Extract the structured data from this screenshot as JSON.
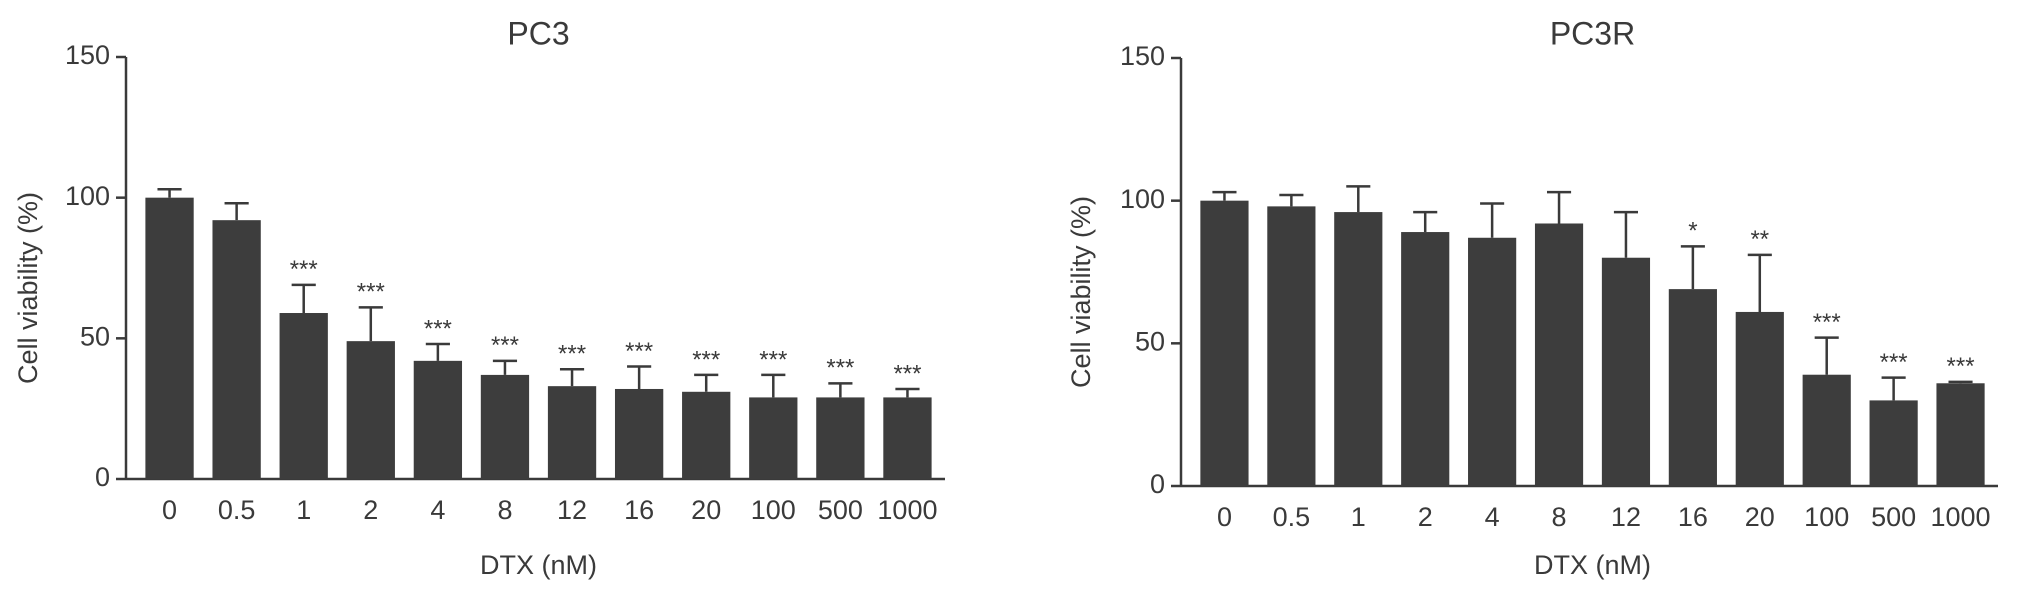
{
  "chart_data": [
    {
      "type": "bar",
      "title": "PC3",
      "x_label": "DTX (nM)",
      "y_label": "Cell viability (%)",
      "categories": [
        "0",
        "0.5",
        "1",
        "2",
        "4",
        "8",
        "12",
        "16",
        "20",
        "100",
        "500",
        "1000"
      ],
      "values": [
        100,
        92,
        59,
        49,
        42,
        37,
        33,
        32,
        31,
        29,
        29,
        29
      ],
      "errors": [
        3,
        6,
        10,
        12,
        6,
        5,
        6,
        8,
        6,
        8,
        5,
        3
      ],
      "annotations": [
        null,
        null,
        "***",
        "***",
        "***",
        "***",
        "***",
        "***",
        "***",
        "***",
        "***",
        "***"
      ],
      "color": "#3d3d3d",
      "ylim": [
        0,
        150
      ],
      "yticks": [
        0,
        50,
        100,
        150
      ]
    },
    {
      "type": "bar",
      "title": "PC3R",
      "x_label": "DTX (nM)",
      "y_label": "Cell viability (%)",
      "categories": [
        "0",
        "0.5",
        "1",
        "2",
        "4",
        "8",
        "12",
        "16",
        "20",
        "100",
        "500",
        "1000"
      ],
      "values": [
        100,
        98,
        96,
        89,
        87,
        92,
        80,
        69,
        61,
        39,
        30,
        36
      ],
      "errors": [
        3,
        4,
        9,
        7,
        12,
        11,
        16,
        15,
        20,
        13,
        8,
        0.5
      ],
      "annotations": [
        null,
        null,
        null,
        null,
        null,
        null,
        null,
        "*",
        "**",
        "***",
        "***",
        "***"
      ],
      "color": "#3d3d3d",
      "ylim": [
        0,
        150
      ],
      "yticks": [
        0,
        50,
        100,
        150
      ]
    }
  ]
}
